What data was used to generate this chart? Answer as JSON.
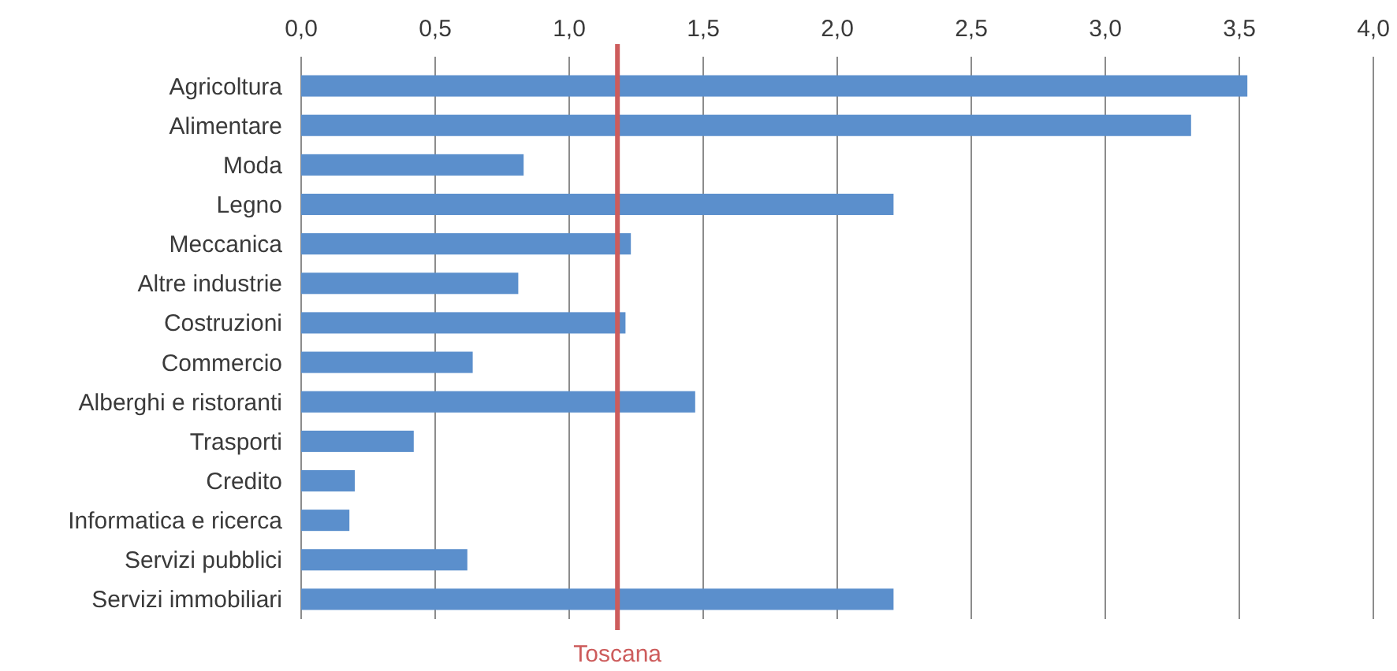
{
  "chart_data": {
    "type": "bar",
    "orientation": "horizontal",
    "categories": [
      "Agricoltura",
      "Alimentare",
      "Moda",
      "Legno",
      "Meccanica",
      "Altre industrie",
      "Costruzioni",
      "Commercio",
      "Alberghi e ristoranti",
      "Trasporti",
      "Credito",
      "Informatica e ricerca",
      "Servizi pubblici",
      "Servizi immobiliari"
    ],
    "values": [
      3.53,
      3.32,
      0.83,
      2.21,
      1.23,
      0.81,
      1.21,
      0.64,
      1.47,
      0.42,
      0.2,
      0.18,
      0.62,
      2.21
    ],
    "color": "#5b8fcc",
    "xlim": [
      0,
      4
    ],
    "xticks": [
      {
        "value": 0,
        "label": "0,0"
      },
      {
        "value": 0.5,
        "label": "0,5"
      },
      {
        "value": 1,
        "label": "1,0"
      },
      {
        "value": 1.5,
        "label": "1,5"
      },
      {
        "value": 2,
        "label": "2,0"
      },
      {
        "value": 2.5,
        "label": "2,5"
      },
      {
        "value": 3,
        "label": "3,0"
      },
      {
        "value": 3.5,
        "label": "3,5"
      },
      {
        "value": 4,
        "label": "4,0"
      }
    ],
    "grid": "x",
    "ref_lines": [
      {
        "axis": "x",
        "value": 1.18,
        "label": "Toscana",
        "color": "#cd5c5c"
      }
    ]
  }
}
